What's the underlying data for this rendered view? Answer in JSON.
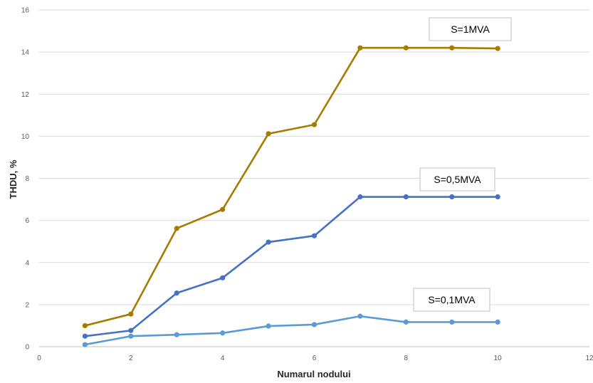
{
  "chart_data": {
    "type": "line",
    "xlabel": "Numarul nodului",
    "ylabel": "THDU, %",
    "xlim": [
      0,
      12
    ],
    "ylim": [
      0,
      16
    ],
    "xticks": [
      "0",
      "2",
      "4",
      "6",
      "8",
      "10",
      "12"
    ],
    "yticks": [
      "0",
      "2",
      "4",
      "6",
      "8",
      "10",
      "12",
      "14",
      "16"
    ],
    "grid": "horizontal",
    "x": [
      1,
      2,
      3,
      4,
      5,
      6,
      7,
      8,
      9,
      10
    ],
    "series": [
      {
        "name": "S=1MVA",
        "color": "#a67c00",
        "values": [
          1.0,
          1.55,
          5.62,
          6.52,
          10.12,
          10.55,
          14.2,
          14.2,
          14.2,
          14.17
        ]
      },
      {
        "name": "S=0,5MVA",
        "color": "#4472c4",
        "values": [
          0.5,
          0.77,
          2.55,
          3.27,
          4.97,
          5.27,
          7.12,
          7.12,
          7.12,
          7.12
        ]
      },
      {
        "name": "S=0,1MVA",
        "color": "#5b9bd5",
        "values": [
          0.1,
          0.5,
          0.57,
          0.65,
          0.98,
          1.05,
          1.45,
          1.17,
          1.17,
          1.17
        ]
      }
    ]
  }
}
